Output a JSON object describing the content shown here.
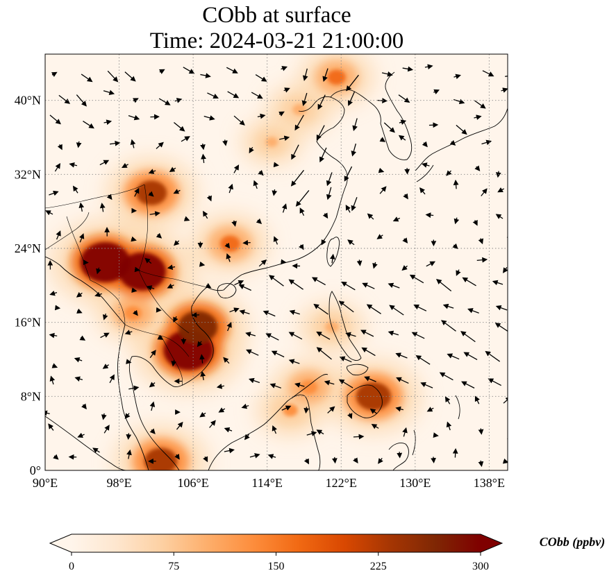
{
  "title": {
    "line1": "CObb at surface",
    "line2": "Time: 2024-03-21 21:00:00"
  },
  "map": {
    "lon_range": [
      90,
      140
    ],
    "lat_range": [
      0,
      45
    ],
    "lon_ticks": [
      {
        "value": 90,
        "label": "90°E"
      },
      {
        "value": 98,
        "label": "98°E"
      },
      {
        "value": 106,
        "label": "106°E"
      },
      {
        "value": 114,
        "label": "114°E"
      },
      {
        "value": 122,
        "label": "122°E"
      },
      {
        "value": 130,
        "label": "130°E"
      },
      {
        "value": 138,
        "label": "138°E"
      }
    ],
    "lat_ticks": [
      {
        "value": 0,
        "label": "0°"
      },
      {
        "value": 8,
        "label": "8°N"
      },
      {
        "value": 16,
        "label": "16°N"
      },
      {
        "value": 24,
        "label": "24°N"
      },
      {
        "value": 32,
        "label": "32°N"
      },
      {
        "value": 40,
        "label": "40°N"
      }
    ],
    "gridlines": "dotted",
    "field_colors": {
      "background": "#fff5eb",
      "low": "#fdd9b0",
      "mid": "#f4a26a",
      "high": "#d7301f",
      "max": "#7f0000"
    },
    "hotspots": [
      {
        "name": "myanmar-yunnan",
        "lon": 96.5,
        "lat": 22.5,
        "value": 300
      },
      {
        "name": "northern-laos",
        "lon": 100.5,
        "lat": 21.5,
        "value": 290
      },
      {
        "name": "cambodia",
        "lon": 105.5,
        "lat": 13.0,
        "value": 300
      },
      {
        "name": "southeast-laos",
        "lon": 106.5,
        "lat": 15.5,
        "value": 260
      },
      {
        "name": "sichuan",
        "lon": 101.5,
        "lat": 30.0,
        "value": 220
      },
      {
        "name": "mindanao",
        "lon": 125.5,
        "lat": 8.0,
        "value": 240
      },
      {
        "name": "malay-peninsula",
        "lon": 102.5,
        "lat": 1.0,
        "value": 230
      },
      {
        "name": "guangxi",
        "lon": 110.0,
        "lat": 24.5,
        "value": 160
      },
      {
        "name": "thailand",
        "lon": 99.5,
        "lat": 17.0,
        "value": 140
      },
      {
        "name": "hebei",
        "lon": 117.5,
        "lat": 39.0,
        "value": 110
      },
      {
        "name": "bohai",
        "lon": 121.5,
        "lat": 42.5,
        "value": 150
      },
      {
        "name": "shandong",
        "lon": 114.5,
        "lat": 35.5,
        "value": 90
      },
      {
        "name": "borneo-north",
        "lon": 116.5,
        "lat": 6.5,
        "value": 120
      },
      {
        "name": "palawan",
        "lon": 118.5,
        "lat": 9.0,
        "value": 140
      },
      {
        "name": "luzon",
        "lon": 121.0,
        "lat": 15.5,
        "value": 110
      }
    ],
    "wind_vector_color": "#000000"
  },
  "colorbar": {
    "min": 0,
    "max": 300,
    "ticks": [
      "0",
      "75",
      "150",
      "225",
      "300"
    ],
    "label": "CObb (ppbv)",
    "colormap": [
      "#fff5eb",
      "#fee6ce",
      "#fdd0a2",
      "#fdae6b",
      "#fd8d3c",
      "#f16913",
      "#d94801",
      "#a63603",
      "#7f2704",
      "#7f0000"
    ],
    "extend": "both"
  }
}
